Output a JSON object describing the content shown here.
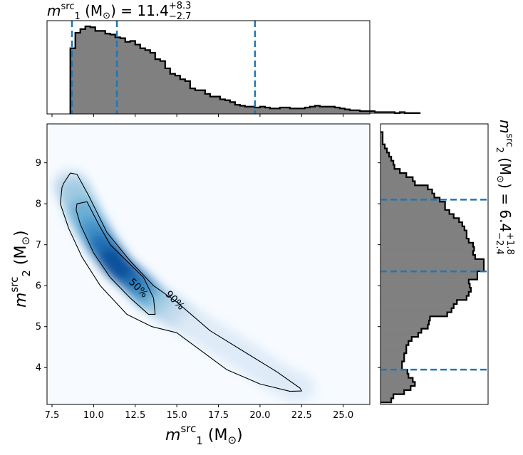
{
  "chart_data": [
    {
      "type": "histogram",
      "panel": "top-marginal",
      "parameter": "m1_src",
      "title": {
        "base": "m",
        "sub": "1",
        "sup": "src",
        "unit_pre": " (M",
        "unit_sub": "⊙",
        "unit_post": ") = 11.4",
        "err_plus": "+8.3",
        "err_minus": "−2.7"
      },
      "xlim": [
        7.2,
        26.6
      ],
      "bin_edges_start": 8.6,
      "bin_width": 0.3,
      "values": [
        0.72,
        0.89,
        0.93,
        0.96,
        0.95,
        0.91,
        0.91,
        0.88,
        0.87,
        0.84,
        0.83,
        0.79,
        0.8,
        0.76,
        0.72,
        0.7,
        0.67,
        0.6,
        0.58,
        0.5,
        0.44,
        0.42,
        0.38,
        0.36,
        0.28,
        0.26,
        0.26,
        0.22,
        0.19,
        0.19,
        0.16,
        0.15,
        0.13,
        0.1,
        0.09,
        0.08,
        0.08,
        0.07,
        0.08,
        0.07,
        0.06,
        0.06,
        0.07,
        0.07,
        0.06,
        0.06,
        0.06,
        0.07,
        0.08,
        0.09,
        0.08,
        0.08,
        0.08,
        0.07,
        0.06,
        0.05,
        0.04,
        0.04,
        0.03,
        0.03,
        0.03,
        0.02,
        0.02,
        0.02,
        0.02,
        0.01,
        0.02,
        0.01,
        0.01,
        0.01
      ],
      "quantile_lines": [
        8.7,
        11.4,
        19.7
      ],
      "fill_color": "#808080",
      "line_color": "#1f77b4"
    },
    {
      "type": "heatmap",
      "panel": "joint",
      "xlim": [
        7.2,
        26.6
      ],
      "ylim": [
        3.1,
        9.95
      ],
      "xticks": [
        "7.5",
        "10.0",
        "12.5",
        "15.0",
        "17.5",
        "20.0",
        "22.5",
        "25.0"
      ],
      "xtick_values": [
        7.5,
        10,
        12.5,
        15,
        17.5,
        20,
        22.5,
        25
      ],
      "yticks": [
        "4",
        "5",
        "6",
        "7",
        "8",
        "9"
      ],
      "ytick_values": [
        4,
        5,
        6,
        7,
        8,
        9
      ],
      "xlabel": {
        "base": "m",
        "sub": "1",
        "sup": "src",
        "unit_pre": " (M",
        "unit_sub": "⊙",
        "unit_post": ")"
      },
      "ylabel": {
        "base": "m",
        "sub": "2",
        "sup": "src",
        "unit_pre": " (M",
        "unit_sub": "⊙",
        "unit_post": ")"
      },
      "colormap": "Blues",
      "density_spine": [
        [
          8.6,
          8.5
        ],
        [
          9.5,
          7.7
        ],
        [
          10.5,
          7.0
        ],
        [
          11.5,
          6.45
        ],
        [
          12.5,
          6.1
        ],
        [
          13.5,
          5.7
        ],
        [
          15,
          5.3
        ],
        [
          17,
          4.8
        ],
        [
          19,
          4.3
        ],
        [
          21,
          3.75
        ],
        [
          22.5,
          3.45
        ]
      ],
      "contours": [
        {
          "label": "50%",
          "points": [
            [
              9.0,
              8.0
            ],
            [
              9.6,
              8.05
            ],
            [
              10.3,
              7.5
            ],
            [
              11.0,
              7.0
            ],
            [
              12.0,
              6.6
            ],
            [
              13.0,
              6.2
            ],
            [
              13.6,
              5.7
            ],
            [
              13.7,
              5.3
            ],
            [
              13.3,
              5.3
            ],
            [
              12.2,
              5.7
            ],
            [
              11.0,
              6.2
            ],
            [
              10.0,
              6.8
            ],
            [
              9.2,
              7.5
            ],
            [
              8.95,
              7.85
            ]
          ],
          "label_pos": [
            12.7,
            5.95
          ],
          "label_angle": 45
        },
        {
          "label": "90%",
          "points": [
            [
              8.2,
              8.5
            ],
            [
              8.6,
              8.75
            ],
            [
              9.0,
              8.72
            ],
            [
              9.7,
              8.2
            ],
            [
              10.8,
              7.3
            ],
            [
              12.2,
              6.6
            ],
            [
              13.6,
              6.0
            ],
            [
              15.0,
              5.6
            ],
            [
              17.0,
              4.9
            ],
            [
              19.0,
              4.4
            ],
            [
              21.0,
              3.9
            ],
            [
              22.4,
              3.5
            ],
            [
              22.5,
              3.43
            ],
            [
              21.8,
              3.42
            ],
            [
              20.0,
              3.6
            ],
            [
              18.0,
              3.95
            ],
            [
              16.5,
              4.4
            ],
            [
              15.0,
              4.85
            ],
            [
              13.5,
              5.0
            ],
            [
              12.0,
              5.3
            ],
            [
              10.4,
              6.0
            ],
            [
              9.3,
              6.7
            ],
            [
              8.5,
              7.4
            ],
            [
              8.0,
              8.0
            ],
            [
              8.1,
              8.4
            ]
          ],
          "label_pos": [
            14.9,
            5.65
          ],
          "label_angle": 45
        }
      ],
      "contour_color": "#000000"
    },
    {
      "type": "histogram",
      "panel": "right-marginal",
      "orientation": "horizontal",
      "parameter": "m2_src",
      "title": {
        "base": "m",
        "sub": "2",
        "sup": "src",
        "unit_pre": " (M",
        "unit_sub": "⊙",
        "unit_post": ") = 6.4",
        "err_plus": "+1.8",
        "err_minus": "−2.4"
      },
      "ylim": [
        3.1,
        9.95
      ],
      "bin_edges_start": 3.15,
      "bin_width": 0.1,
      "values": [
        0.1,
        0.12,
        0.22,
        0.28,
        0.32,
        0.3,
        0.26,
        0.25,
        0.2,
        0.2,
        0.22,
        0.22,
        0.24,
        0.24,
        0.26,
        0.29,
        0.35,
        0.38,
        0.44,
        0.45,
        0.46,
        0.62,
        0.66,
        0.68,
        0.71,
        0.8,
        0.82,
        0.84,
        0.83,
        0.82,
        0.9,
        0.9,
        0.96,
        0.96,
        0.96,
        0.88,
        0.86,
        0.87,
        0.86,
        0.82,
        0.8,
        0.8,
        0.78,
        0.76,
        0.73,
        0.68,
        0.64,
        0.6,
        0.6,
        0.55,
        0.5,
        0.48,
        0.44,
        0.32,
        0.3,
        0.24,
        0.18,
        0.13,
        0.12,
        0.1,
        0.08,
        0.06,
        0.04,
        0.02,
        0.02,
        0.02
      ],
      "quantile_lines": [
        3.95,
        6.35,
        8.1
      ],
      "fill_color": "#808080",
      "line_color": "#1f77b4"
    }
  ]
}
